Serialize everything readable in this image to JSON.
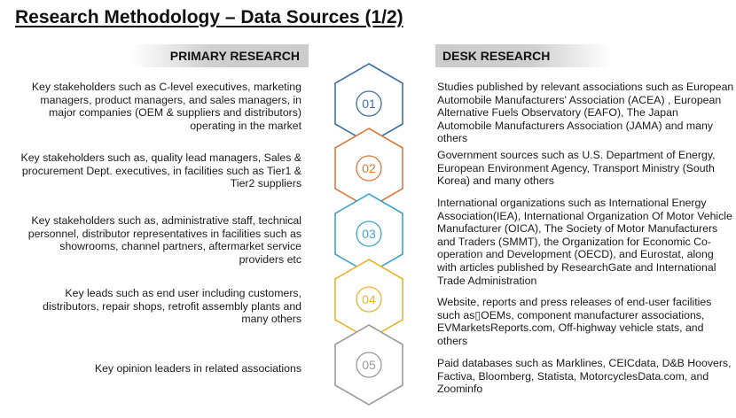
{
  "title": "Research Methodology – Data Sources (1/2)",
  "primary_header": "PRIMARY RESEARCH",
  "desk_header": "DESK RESEARCH",
  "steps": [
    {
      "number": "01",
      "color": "#3d6fa5",
      "primary": "Key stakeholders such as C-level executives, marketing managers, product managers, and sales managers, in major companies (OEM & suppliers and distributors) operating in the market",
      "desk": "Studies published by relevant associations such as European Automobile Manufacturers' Association (ACEA) , European Alternative Fuels Observatory (EAFO), The Japan Automobile Manufacturers Association (JAMA) and many others"
    },
    {
      "number": "02",
      "color": "#d77a3f",
      "primary": "Key stakeholders such as, quality lead managers, Sales & procurement Dept. executives, in facilities such as Tier1 & Tier2 suppliers",
      "desk": "Government sources such as U.S. Department of Energy, European Environment Agency, Transport Ministry (South Korea) and many others"
    },
    {
      "number": "03",
      "color": "#3fa3d2",
      "primary": "Key stakeholders such as, administrative staff, technical personnel, distributor representatives in facilities such as showrooms, channel partners, aftermarket service providers etc",
      "desk": "International organizations such as International Energy Association(IEA), International Organization Of Motor Vehicle Manufacturer (OICA), The Society of Motor Manufacturers and Traders (SMMT), the Organization for Economic Co-operation and Development (OECD), and Eurostat, along with articles published by ResearchGate and  International Trade Administration"
    },
    {
      "number": "04",
      "color": "#e8b52a",
      "primary": "Key leads such as end user including customers, distributors, repair shops, retrofit assembly plants and many others",
      "desk": "Website, reports and press releases of end-user facilities such as▯OEMs, component manufacturer associations, EVMarketsReports.com, Off-highway vehicle stats, and others"
    },
    {
      "number": "05",
      "color": "#9a9a9a",
      "primary": "Key opinion leaders in related associations",
      "desk": "Paid databases such as Marklines, CEICdata, D&B Hoovers, Factiva, Bloomberg, Statista, MotorcyclesData.com, and Zoominfo"
    }
  ]
}
